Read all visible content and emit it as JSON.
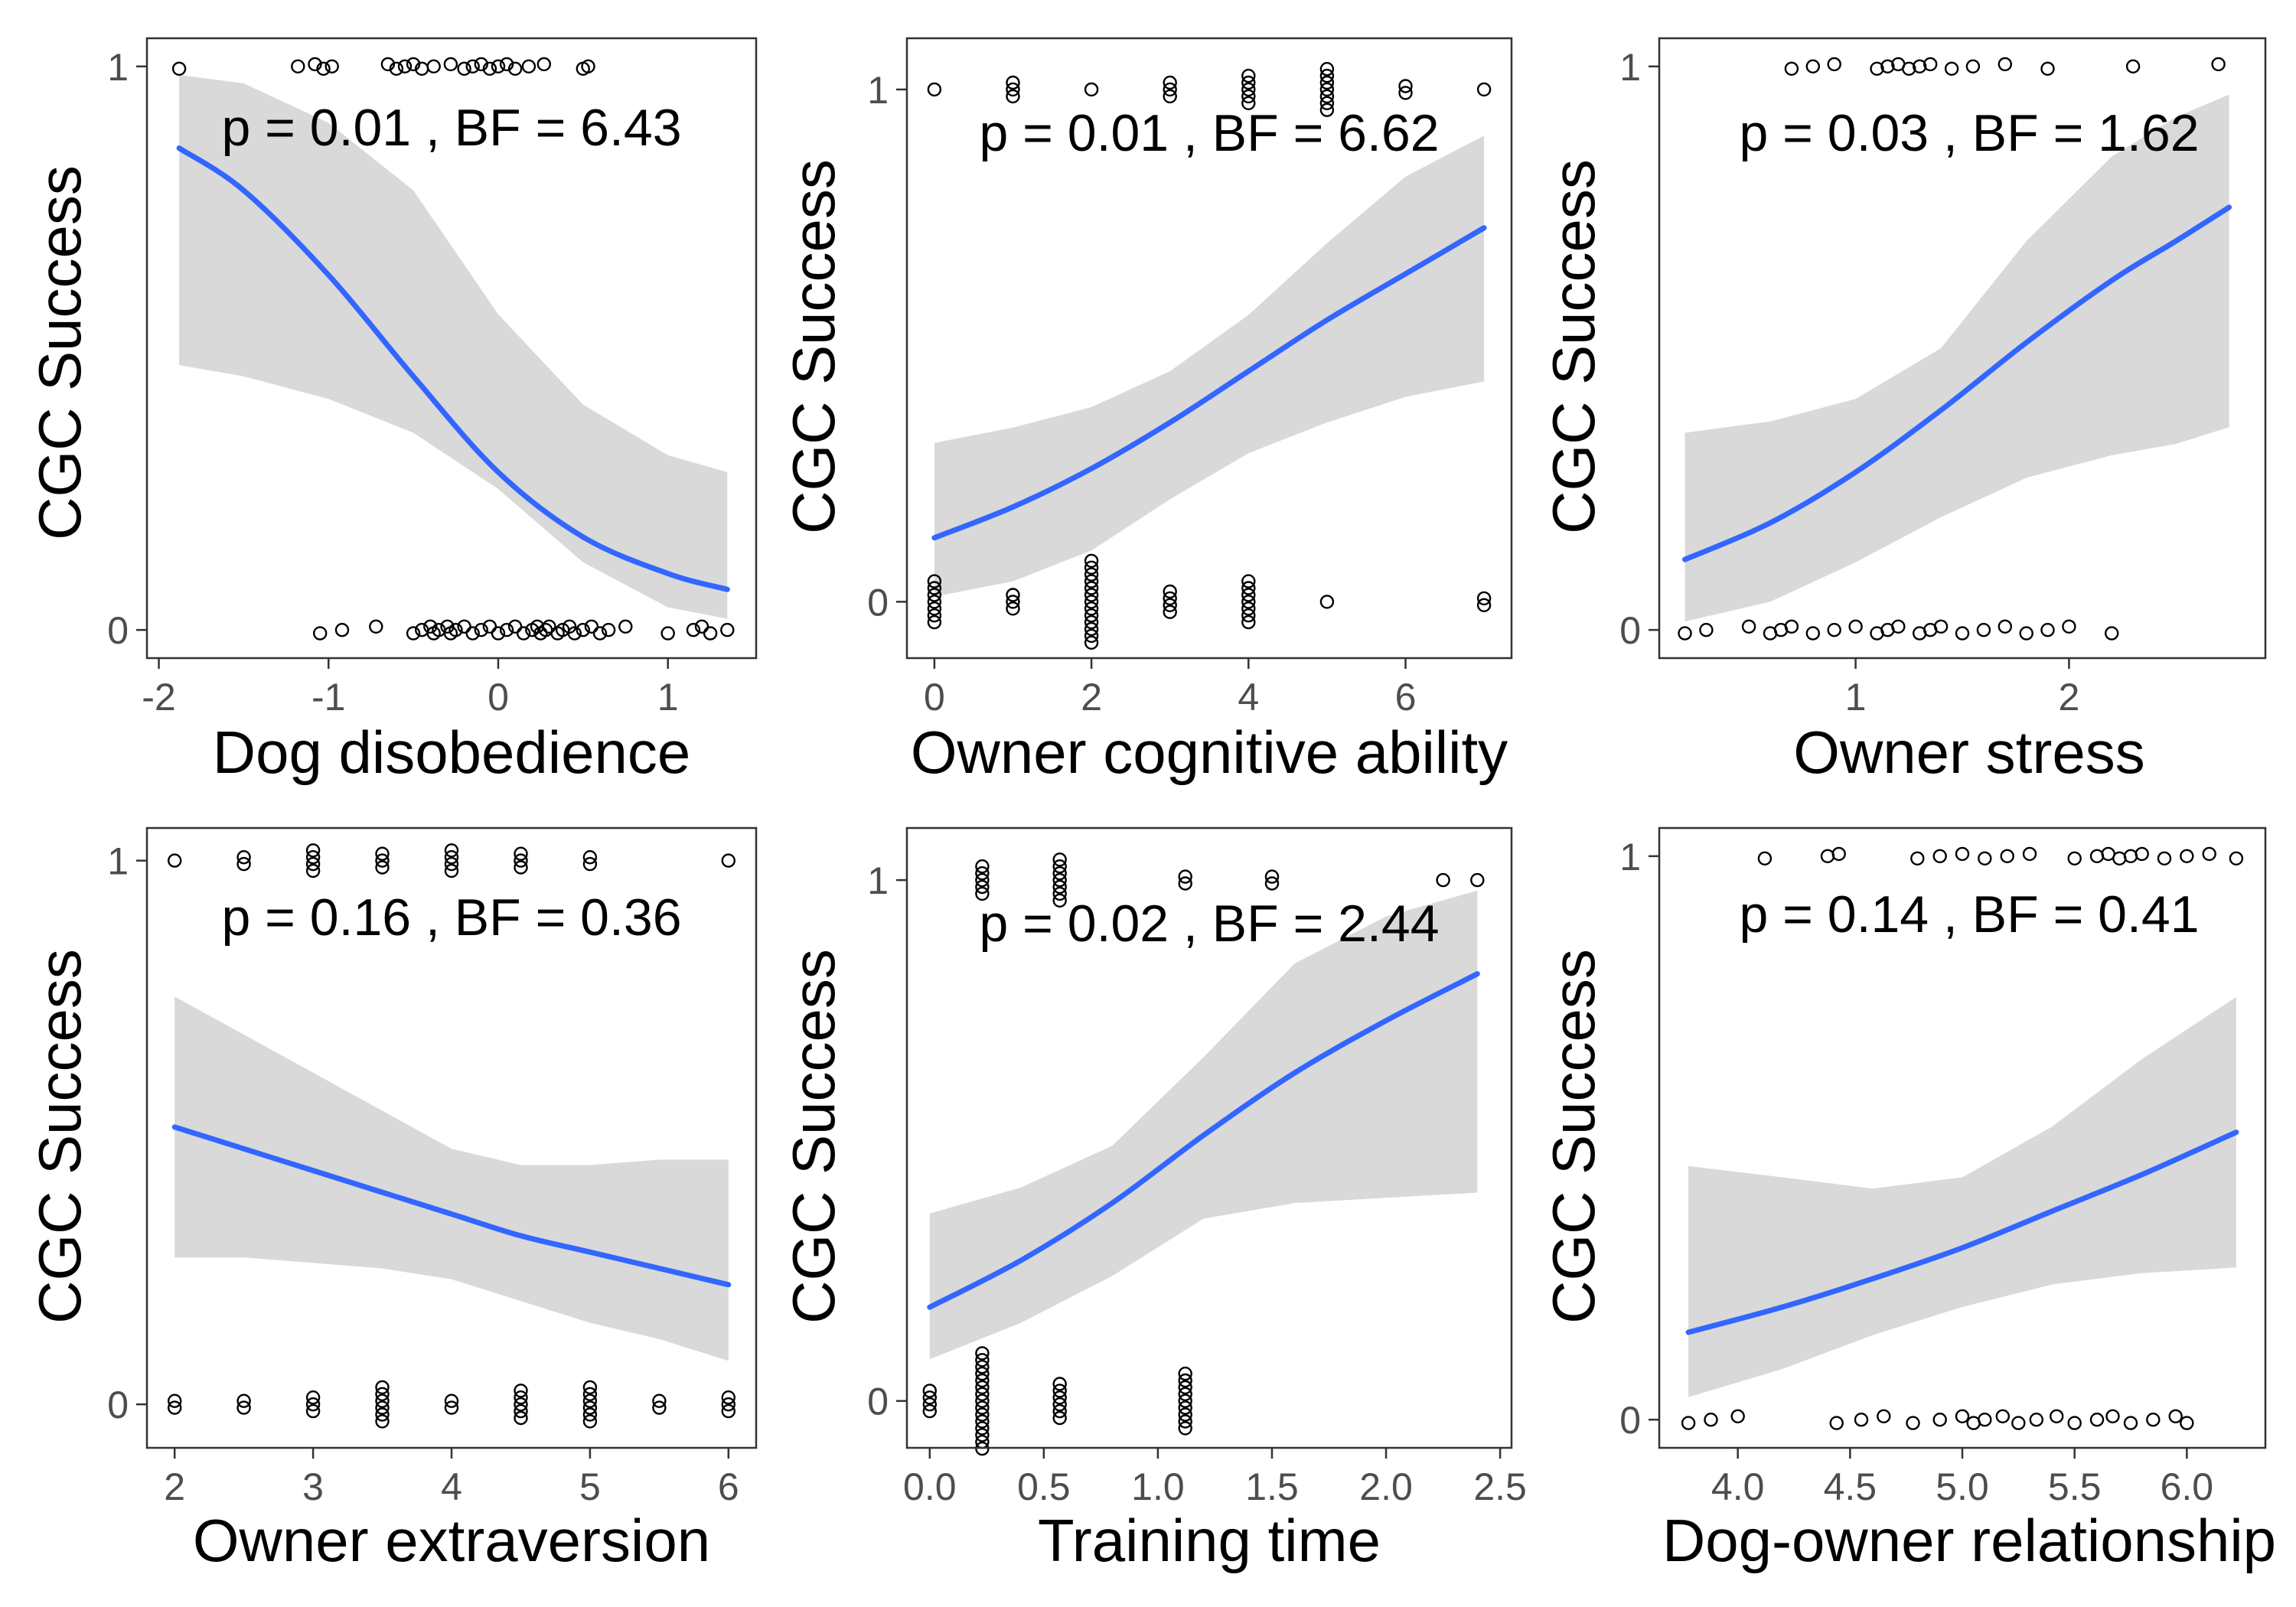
{
  "figure": {
    "background": "#ffffff",
    "band_color": "#d9d9d9",
    "line_color": "#3366ff",
    "point_stroke": "#000000",
    "frame_color": "#333333"
  },
  "chart_data": [
    {
      "type": "scatter",
      "panel": "top-left",
      "xlabel": "Dog disobedience",
      "ylabel": "CGC Success",
      "annotation": "p = 0.01 , BF = 6.43",
      "xlim": [
        -2.07,
        1.52
      ],
      "ylim": [
        -0.05,
        1.05
      ],
      "xticks": [
        -2,
        -1,
        0,
        1
      ],
      "xtick_labels": [
        "-2",
        "-1",
        "0",
        "1"
      ],
      "yticks": [
        0,
        1
      ],
      "ytick_labels": [
        "0",
        "1"
      ],
      "fit": {
        "x": [
          -1.88,
          -1.5,
          -1.0,
          -0.5,
          0.0,
          0.5,
          1.0,
          1.35
        ],
        "y": [
          0.855,
          0.78,
          0.63,
          0.45,
          0.28,
          0.165,
          0.1,
          0.072
        ]
      },
      "band": {
        "x": [
          -1.88,
          -1.5,
          -1.0,
          -0.5,
          0.0,
          0.5,
          1.0,
          1.35
        ],
        "lower": [
          0.47,
          0.45,
          0.41,
          0.35,
          0.25,
          0.12,
          0.04,
          0.02
        ],
        "upper": [
          0.985,
          0.97,
          0.9,
          0.78,
          0.56,
          0.4,
          0.31,
          0.28
        ]
      },
      "points": {
        "success_x": [
          -1.88,
          -1.18,
          -1.08,
          -1.03,
          -0.98,
          -0.65,
          -0.6,
          -0.55,
          -0.5,
          -0.45,
          -0.38,
          -0.28,
          -0.2,
          -0.15,
          -0.1,
          -0.05,
          0.0,
          0.05,
          0.1,
          0.18,
          0.27,
          0.5,
          0.53
        ],
        "failure_x": [
          -1.05,
          -0.92,
          -0.72,
          -0.5,
          -0.45,
          -0.4,
          -0.38,
          -0.35,
          -0.3,
          -0.28,
          -0.25,
          -0.2,
          -0.15,
          -0.1,
          -0.05,
          0.0,
          0.05,
          0.1,
          0.15,
          0.2,
          0.23,
          0.25,
          0.28,
          0.3,
          0.35,
          0.38,
          0.42,
          0.45,
          0.5,
          0.55,
          0.6,
          0.65,
          0.75,
          1.0,
          1.15,
          1.2,
          1.25,
          1.35
        ]
      }
    },
    {
      "type": "scatter",
      "panel": "top-middle",
      "xlabel": "Owner cognitive ability",
      "ylabel": "CGC Success",
      "annotation": "p = 0.01 , BF = 6.62",
      "xlim": [
        -0.35,
        7.35
      ],
      "ylim": [
        -0.11,
        1.1
      ],
      "xticks": [
        0,
        2,
        4,
        6
      ],
      "xtick_labels": [
        "0",
        "2",
        "4",
        "6"
      ],
      "yticks": [
        0,
        1
      ],
      "ytick_labels": [
        "0",
        "1"
      ],
      "fit": {
        "x": [
          0,
          1,
          2,
          3,
          4,
          5,
          6,
          7
        ],
        "y": [
          0.125,
          0.185,
          0.26,
          0.35,
          0.45,
          0.55,
          0.64,
          0.73
        ]
      },
      "band": {
        "x": [
          0,
          1,
          2,
          3,
          4,
          5,
          6,
          7
        ],
        "lower": [
          0.01,
          0.04,
          0.1,
          0.2,
          0.29,
          0.35,
          0.4,
          0.43
        ]
      },
      "band_upper": [
        0.31,
        0.34,
        0.38,
        0.45,
        0.56,
        0.7,
        0.83,
        0.91
      ],
      "points": {
        "success": [
          {
            "x": 0,
            "n": 1
          },
          {
            "x": 1,
            "n": 3
          },
          {
            "x": 2,
            "n": 1
          },
          {
            "x": 3,
            "n": 3
          },
          {
            "x": 4,
            "n": 5
          },
          {
            "x": 5,
            "n": 7
          },
          {
            "x": 6,
            "n": 2
          },
          {
            "x": 7,
            "n": 1
          }
        ],
        "failure": [
          {
            "x": 0,
            "n": 7
          },
          {
            "x": 1,
            "n": 3
          },
          {
            "x": 2,
            "n": 13
          },
          {
            "x": 3,
            "n": 4
          },
          {
            "x": 4,
            "n": 7
          },
          {
            "x": 5,
            "n": 1
          },
          {
            "x": 7,
            "n": 2
          }
        ]
      }
    },
    {
      "type": "scatter",
      "panel": "top-right",
      "xlabel": "Owner stress",
      "ylabel": "CGC Success",
      "annotation": "p = 0.03 , BF = 1.62",
      "xlim": [
        0.08,
        2.92
      ],
      "ylim": [
        -0.05,
        1.05
      ],
      "xticks": [
        1,
        2
      ],
      "xtick_labels": [
        "1",
        "2"
      ],
      "yticks": [
        0,
        1
      ],
      "ytick_labels": [
        "0",
        "1"
      ],
      "fit": {
        "x": [
          0.2,
          0.6,
          1.0,
          1.4,
          1.8,
          2.2,
          2.5,
          2.75
        ],
        "y": [
          0.125,
          0.19,
          0.28,
          0.39,
          0.51,
          0.62,
          0.69,
          0.75
        ]
      },
      "band": {
        "x": [
          0.2,
          0.6,
          1.0,
          1.4,
          1.8,
          2.2,
          2.5,
          2.75
        ],
        "lower": [
          0.015,
          0.05,
          0.12,
          0.2,
          0.27,
          0.31,
          0.33,
          0.36
        ]
      },
      "band_upper": [
        0.35,
        0.37,
        0.41,
        0.5,
        0.69,
        0.84,
        0.91,
        0.95
      ],
      "points": {
        "success_x": [
          0.7,
          0.8,
          0.9,
          1.1,
          1.15,
          1.2,
          1.25,
          1.3,
          1.35,
          1.45,
          1.55,
          1.7,
          1.9,
          2.3,
          2.7
        ],
        "failure_x": [
          0.2,
          0.3,
          0.5,
          0.6,
          0.65,
          0.7,
          0.8,
          0.9,
          1.0,
          1.1,
          1.15,
          1.2,
          1.3,
          1.35,
          1.4,
          1.5,
          1.6,
          1.7,
          1.8,
          1.9,
          2.0,
          2.2
        ]
      }
    },
    {
      "type": "scatter",
      "panel": "bottom-left",
      "xlabel": "Owner extraversion",
      "ylabel": "CGC Success",
      "annotation": "p = 0.16 , BF = 0.36",
      "xlim": [
        1.8,
        6.2
      ],
      "ylim": [
        -0.08,
        1.06
      ],
      "xticks": [
        2,
        3,
        4,
        5,
        6
      ],
      "xtick_labels": [
        "2",
        "3",
        "4",
        "5",
        "6"
      ],
      "yticks": [
        0,
        1
      ],
      "ytick_labels": [
        "0",
        "1"
      ],
      "fit": {
        "x": [
          2,
          2.5,
          3,
          3.5,
          4,
          4.5,
          5,
          5.5,
          6
        ],
        "y": [
          0.51,
          0.47,
          0.43,
          0.39,
          0.35,
          0.31,
          0.28,
          0.25,
          0.22
        ]
      },
      "band": {
        "x": [
          2,
          2.5,
          3,
          3.5,
          4,
          4.5,
          5,
          5.5,
          6
        ],
        "lower": [
          0.27,
          0.27,
          0.26,
          0.25,
          0.23,
          0.19,
          0.15,
          0.12,
          0.08
        ]
      },
      "band_upper": [
        0.75,
        0.68,
        0.61,
        0.54,
        0.47,
        0.44,
        0.44,
        0.45,
        0.45
      ],
      "points": {
        "success": [
          {
            "x": 2,
            "n": 1
          },
          {
            "x": 2.5,
            "n": 2
          },
          {
            "x": 3,
            "n": 4
          },
          {
            "x": 3.5,
            "n": 3
          },
          {
            "x": 4,
            "n": 4
          },
          {
            "x": 4.5,
            "n": 3
          },
          {
            "x": 5,
            "n": 2
          },
          {
            "x": 6,
            "n": 1
          }
        ],
        "failure": [
          {
            "x": 2,
            "n": 2
          },
          {
            "x": 2.5,
            "n": 2
          },
          {
            "x": 3,
            "n": 3
          },
          {
            "x": 3.5,
            "n": 6
          },
          {
            "x": 4,
            "n": 2
          },
          {
            "x": 4.5,
            "n": 5
          },
          {
            "x": 5,
            "n": 6
          },
          {
            "x": 5.5,
            "n": 2
          },
          {
            "x": 6,
            "n": 3
          }
        ]
      }
    },
    {
      "type": "scatter",
      "panel": "bottom-middle",
      "xlabel": "Training time",
      "ylabel": "CGC Success",
      "annotation": "p = 0.02 , BF = 2.44",
      "xlim": [
        -0.1,
        2.55
      ],
      "ylim": [
        -0.09,
        1.1
      ],
      "xticks": [
        0.0,
        0.5,
        1.0,
        1.5,
        2.0,
        2.5
      ],
      "xtick_labels": [
        "0.0",
        "0.5",
        "1.0",
        "1.5",
        "2.0",
        "2.5"
      ],
      "yticks": [
        0,
        1
      ],
      "ytick_labels": [
        "0",
        "1"
      ],
      "fit": {
        "x": [
          0,
          0.4,
          0.8,
          1.2,
          1.6,
          2.0,
          2.4
        ],
        "y": [
          0.18,
          0.27,
          0.38,
          0.51,
          0.63,
          0.73,
          0.82
        ]
      },
      "band": {
        "x": [
          0,
          0.4,
          0.8,
          1.2,
          1.6,
          2.0,
          2.4
        ],
        "lower": [
          0.08,
          0.15,
          0.24,
          0.35,
          0.38,
          0.39,
          0.4
        ]
      },
      "band_upper": [
        0.36,
        0.41,
        0.49,
        0.66,
        0.84,
        0.93,
        0.98
      ],
      "points": {
        "success": [
          {
            "x": 0.23,
            "n": 5
          },
          {
            "x": 0.57,
            "n": 7
          },
          {
            "x": 1.12,
            "n": 2
          },
          {
            "x": 1.5,
            "n": 2
          },
          {
            "x": 2.25,
            "n": 1
          },
          {
            "x": 2.4,
            "n": 1
          }
        ],
        "failure": [
          {
            "x": 0.0,
            "n": 4
          },
          {
            "x": 0.23,
            "n": 15
          },
          {
            "x": 0.57,
            "n": 6
          },
          {
            "x": 1.12,
            "n": 9
          }
        ]
      }
    },
    {
      "type": "scatter",
      "panel": "bottom-right",
      "xlabel": "Dog-owner relationship",
      "ylabel": "CGC Success",
      "annotation": "p = 0.14 , BF = 0.41",
      "xlim": [
        3.65,
        6.35
      ],
      "ylim": [
        -0.05,
        1.05
      ],
      "xticks": [
        4.0,
        4.5,
        5.0,
        5.5,
        6.0
      ],
      "xtick_labels": [
        "4.0",
        "4.5",
        "5.0",
        "5.5",
        "6.0"
      ],
      "yticks": [
        0,
        1
      ],
      "ytick_labels": [
        "0",
        "1"
      ],
      "fit": {
        "x": [
          3.78,
          4.2,
          4.6,
          5.0,
          5.4,
          5.8,
          6.22
        ],
        "y": [
          0.155,
          0.2,
          0.25,
          0.305,
          0.37,
          0.435,
          0.51
        ]
      },
      "band": {
        "x": [
          3.78,
          4.2,
          4.6,
          5.0,
          5.4,
          5.8,
          6.22
        ],
        "lower": [
          0.04,
          0.09,
          0.15,
          0.2,
          0.24,
          0.26,
          0.27
        ]
      },
      "band_upper": [
        0.45,
        0.43,
        0.41,
        0.43,
        0.52,
        0.64,
        0.75
      ],
      "points": {
        "success_x": [
          4.12,
          4.4,
          4.45,
          4.8,
          4.9,
          5.0,
          5.1,
          5.2,
          5.3,
          5.5,
          5.6,
          5.65,
          5.7,
          5.75,
          5.8,
          5.9,
          6.0,
          6.1,
          6.22
        ],
        "failure_x": [
          3.78,
          3.88,
          4.0,
          4.44,
          4.55,
          4.65,
          4.78,
          4.9,
          5.0,
          5.05,
          5.1,
          5.18,
          5.25,
          5.33,
          5.42,
          5.5,
          5.6,
          5.67,
          5.75,
          5.85,
          5.95,
          6.0
        ]
      }
    }
  ]
}
